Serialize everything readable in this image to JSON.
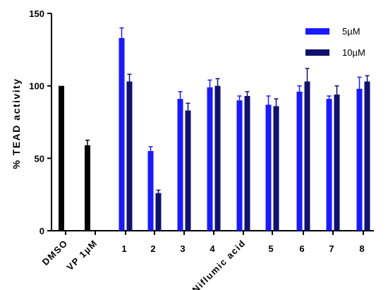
{
  "chart_data": {
    "type": "bar",
    "title": "",
    "xlabel": "",
    "ylabel": "% TEAD activity",
    "ylim": [
      0,
      150
    ],
    "yticks": [
      0,
      50,
      100,
      150
    ],
    "grid": false,
    "legend_position": "top-right",
    "colors": {
      "control": "#000000",
      "5uM": "#1a1aff",
      "10uM": "#10106e"
    },
    "controls": [
      {
        "label": "DMSO",
        "value": 100,
        "error": 0
      },
      {
        "label": "VP 1µM",
        "value": 59,
        "error": 3.5
      }
    ],
    "categories": [
      "1",
      "2",
      "3",
      "4",
      "Niflumic acid",
      "5",
      "6",
      "7",
      "8"
    ],
    "series": [
      {
        "name": "5µM",
        "values": [
          133,
          55,
          91,
          99,
          90,
          87,
          96,
          91,
          98
        ],
        "errors": [
          7,
          3,
          5,
          5,
          3,
          6,
          4,
          2,
          8
        ]
      },
      {
        "name": "10µM",
        "values": [
          103,
          26,
          83,
          100,
          93,
          86,
          103,
          94,
          103
        ],
        "errors": [
          5,
          2,
          5,
          5,
          3,
          5,
          9,
          6,
          4
        ]
      }
    ]
  }
}
